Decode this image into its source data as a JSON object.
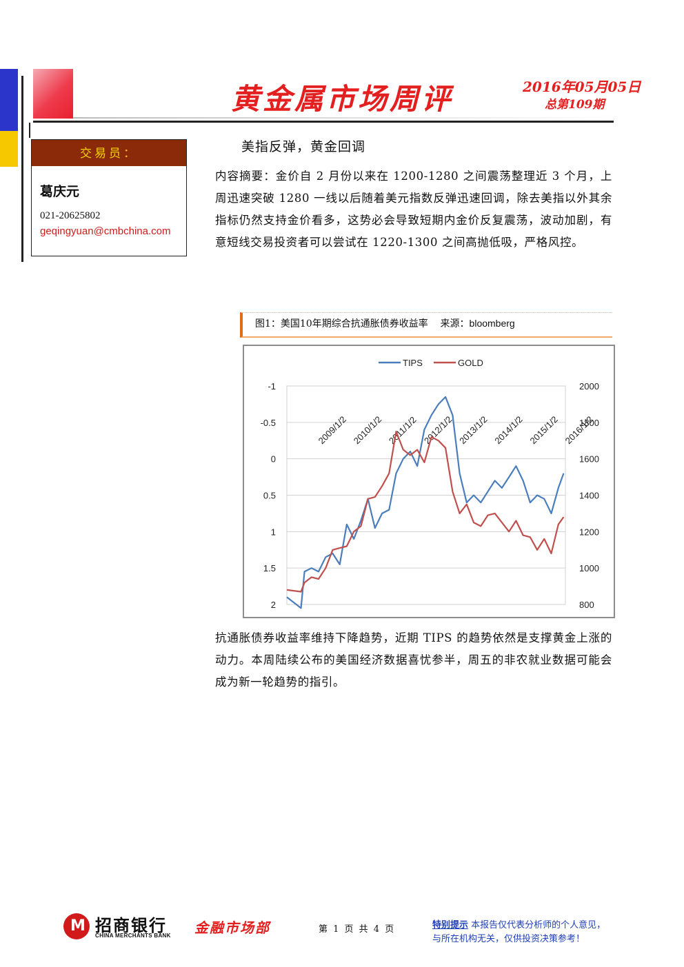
{
  "header": {
    "title": "黄金属市场周评",
    "date": "2016年05月05日",
    "issue": "总第109期"
  },
  "trader": {
    "heading": "交易员：",
    "name": "葛庆元",
    "phone": "021-20625802",
    "email": "geqingyuan@cmbchina.com"
  },
  "article": {
    "subtitle": "美指反弹，黄金回调",
    "summary": "内容摘要：金价自 2 月份以来在 1200-1280 之间震荡整理近 3 个月，上周迅速突破 1280 一线以后随着美元指数反弹迅速回调，除去美指以外其余指标仍然支持金价看多，这势必会导致短期内金价反复震荡，波动加剧，有意短线交易投资者可以尝试在 1220-1300 之间高抛低吸，严格风控。",
    "body": "抗通胀债券收益率维持下降趋势，近期 TIPS 的趋势依然是支撑黄金上涨的动力。本周陆续公布的美国经济数据喜忧参半，周五的非农就业数据可能会成为新一轮趋势的指引。"
  },
  "figure": {
    "caption": "图1：美国10年期综合抗通胀债券收益率",
    "source": "来源：bloomberg"
  },
  "chart_data": {
    "type": "line",
    "title": "",
    "legend_position": "top",
    "grid": true,
    "x_categories": [
      "2009/1/2",
      "2010/1/2",
      "2011/1/2",
      "2012/1/2",
      "2013/1/2",
      "2014/1/2",
      "2015/1/2",
      "2016/1/2"
    ],
    "left_axis": {
      "ticks": [
        "-1",
        "-0.5",
        "0",
        "0.5",
        "1",
        "1.5",
        "2"
      ],
      "range": [
        -1,
        2
      ],
      "inverted": true
    },
    "right_axis": {
      "ticks": [
        "2000",
        "1800",
        "1600",
        "1400",
        "1200",
        "1000",
        "800"
      ],
      "range": [
        800,
        2000
      ]
    },
    "series": [
      {
        "name": "TIPS",
        "axis": "left",
        "color": "#4a7ebb",
        "x": [
          2008.5,
          2008.9,
          2009.0,
          2009.2,
          2009.4,
          2009.6,
          2009.8,
          2010.0,
          2010.2,
          2010.4,
          2010.6,
          2010.8,
          2011.0,
          2011.2,
          2011.4,
          2011.6,
          2011.8,
          2012.0,
          2012.2,
          2012.4,
          2012.6,
          2012.8,
          2013.0,
          2013.2,
          2013.4,
          2013.6,
          2013.8,
          2014.0,
          2014.2,
          2014.4,
          2014.6,
          2014.8,
          2015.0,
          2015.2,
          2015.4,
          2015.6,
          2015.8,
          2016.0,
          2016.2,
          2016.35
        ],
        "y": [
          1.9,
          2.05,
          1.55,
          1.5,
          1.55,
          1.35,
          1.3,
          1.45,
          0.9,
          1.1,
          0.85,
          0.55,
          0.95,
          0.75,
          0.7,
          0.2,
          0.0,
          -0.1,
          0.1,
          -0.4,
          -0.6,
          -0.75,
          -0.85,
          -0.6,
          0.2,
          0.6,
          0.5,
          0.6,
          0.45,
          0.3,
          0.4,
          0.25,
          0.1,
          0.3,
          0.6,
          0.5,
          0.55,
          0.75,
          0.4,
          0.2
        ]
      },
      {
        "name": "GOLD",
        "axis": "right",
        "color": "#c0504d",
        "x": [
          2008.5,
          2008.9,
          2009.0,
          2009.2,
          2009.4,
          2009.6,
          2009.8,
          2010.0,
          2010.2,
          2010.4,
          2010.6,
          2010.8,
          2011.0,
          2011.2,
          2011.4,
          2011.6,
          2011.8,
          2012.0,
          2012.2,
          2012.4,
          2012.6,
          2012.8,
          2013.0,
          2013.2,
          2013.4,
          2013.6,
          2013.8,
          2014.0,
          2014.2,
          2014.4,
          2014.6,
          2014.8,
          2015.0,
          2015.2,
          2015.4,
          2015.6,
          2015.8,
          2016.0,
          2016.2,
          2016.35
        ],
        "y": [
          880,
          870,
          920,
          950,
          940,
          1000,
          1100,
          1110,
          1120,
          1200,
          1230,
          1380,
          1390,
          1450,
          1520,
          1750,
          1650,
          1620,
          1650,
          1580,
          1720,
          1700,
          1660,
          1420,
          1300,
          1350,
          1250,
          1230,
          1290,
          1300,
          1250,
          1200,
          1260,
          1180,
          1170,
          1100,
          1160,
          1080,
          1240,
          1280
        ]
      }
    ]
  },
  "footer": {
    "bank_name": "招商银行",
    "bank_name_en": "CHINA MERCHANTS BANK",
    "logo_mark": "M",
    "department": "金融市场部",
    "page": "第 1 页 共 4 页",
    "notice_key": "特别提示",
    "notice_line1": "本报告仅代表分析师的个人意见，",
    "notice_line2": "与所在机构无关，仅供投资决策参考！"
  }
}
